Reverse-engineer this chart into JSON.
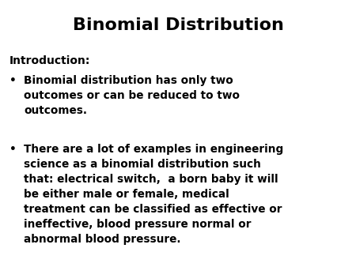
{
  "title": "Binomial Distribution",
  "title_fontsize": 16,
  "title_fontweight": "bold",
  "background_color": "#ffffff",
  "text_color": "#000000",
  "intro_label": "Introduction:",
  "intro_fontsize": 10,
  "intro_fontweight": "bold",
  "bullet_fontsize": 9.8,
  "bullet_fontweight": "bold",
  "bullet1": "Binomial distribution has only two\noutcomes or can be reduced to two\noutcomes.",
  "bullet2": "There are a lot of examples in engineering\nscience as a binomial distribution such\nthat: electrical switch,  a born baby it will\nbe either male or female, medical\ntreatment can be classified as effective or\nineffective, blood pressure normal or\nabnormal blood pressure.",
  "bullet_char": "•",
  "fig_width": 4.5,
  "fig_height": 3.38,
  "dpi": 100
}
